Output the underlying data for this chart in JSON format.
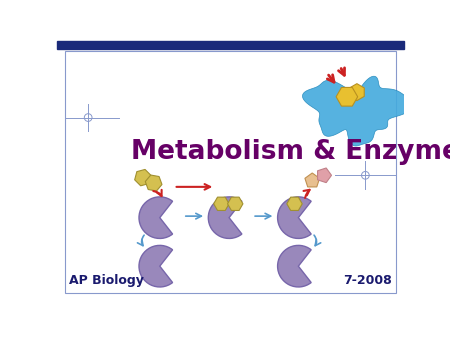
{
  "title": "Metabolism & Enzymes",
  "title_color": "#660066",
  "title_fontsize": 19,
  "title_weight": "bold",
  "footer_left": "AP Biology",
  "footer_right": "7-2008",
  "footer_color": "#1a1a6e",
  "footer_fontsize": 9,
  "bg_color": "#ffffff",
  "header_bar_color": "#1a2a7a",
  "border_color": "#8899cc",
  "enzyme_color": "#9988bb",
  "enzyme_edge": "#7766aa",
  "substrate_color": "#d4c050",
  "substrate_edge": "#a09030",
  "product1_color": "#e8c090",
  "product1_edge": "#c09050",
  "product2_color": "#e0a0a8",
  "product2_edge": "#c08088",
  "arrow_red": "#cc2222",
  "arrow_blue": "#5599cc",
  "crosshair_color": "#99aacc",
  "blob_color": "#44aadd",
  "blob_edge": "#2288bb",
  "blob_substrate": "#e8c030"
}
